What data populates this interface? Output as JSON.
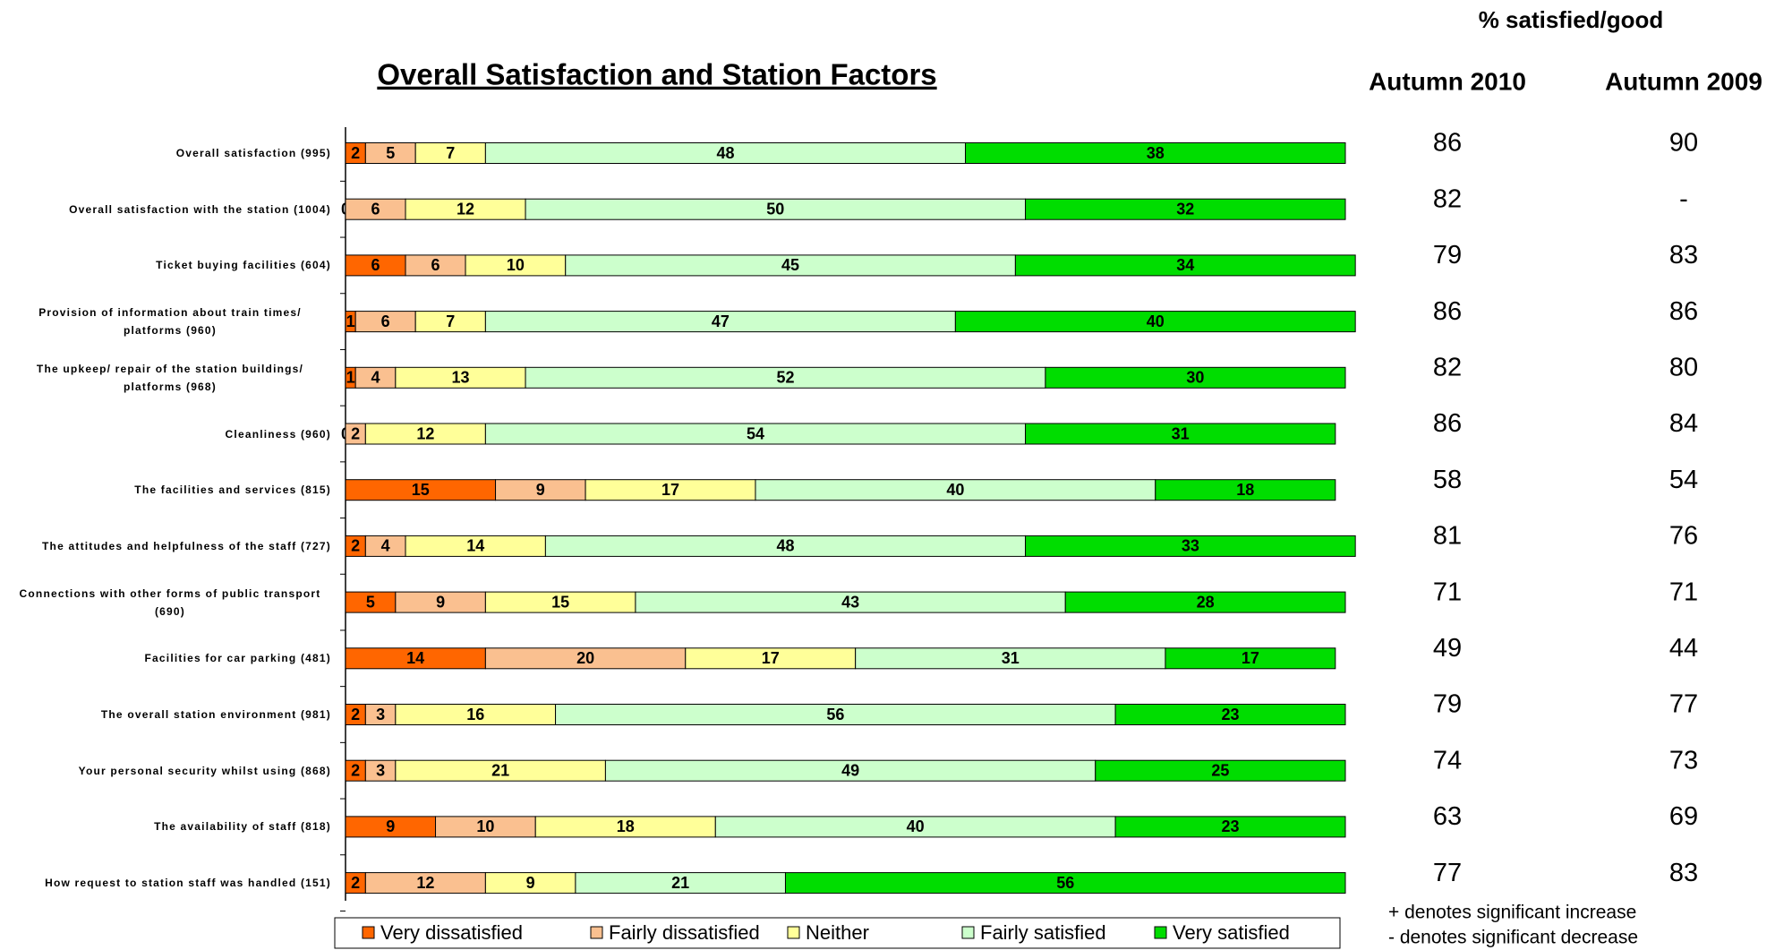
{
  "chart_data": {
    "type": "stacked-barh",
    "title": "Overall Satisfaction and Station Factors",
    "categories": [
      "Overall satisfaction (995)",
      "Overall satisfaction with the station (1004)",
      "Ticket buying facilities (604)",
      "Provision of information about train times/ platforms (960)",
      "The upkeep/ repair of the station buildings/ platforms (968)",
      "Cleanliness (960)",
      "The facilities and services (815)",
      "The attitudes and helpfulness of the staff (727)",
      "Connections with other forms of public transport (690)",
      "Facilities for car parking (481)",
      "The overall station environment (981)",
      "Your personal security whilst using (868)",
      "The availability of staff (818)",
      "How request to station staff was handled (151)"
    ],
    "series": [
      {
        "name": "Very dissatisfied",
        "color": "#ff6600",
        "values": [
          2,
          0,
          6,
          1,
          1,
          0,
          15,
          2,
          5,
          14,
          2,
          2,
          9,
          2
        ]
      },
      {
        "name": "Fairly dissatisfied",
        "color": "#fac090",
        "values": [
          5,
          6,
          6,
          6,
          4,
          2,
          9,
          4,
          9,
          20,
          3,
          3,
          10,
          12
        ]
      },
      {
        "name": "Neither",
        "color": "#ffff99",
        "values": [
          7,
          12,
          10,
          7,
          13,
          12,
          17,
          14,
          15,
          17,
          16,
          21,
          18,
          9
        ]
      },
      {
        "name": "Fairly satisfied",
        "color": "#ccffcc",
        "values": [
          48,
          50,
          45,
          47,
          52,
          54,
          40,
          48,
          43,
          31,
          56,
          49,
          40,
          21
        ]
      },
      {
        "name": "Very satisfied",
        "color": "#00dd00",
        "values": [
          38,
          32,
          34,
          40,
          30,
          31,
          18,
          33,
          28,
          17,
          23,
          25,
          23,
          56
        ]
      }
    ],
    "xlim": [
      0,
      100
    ],
    "legend": "bottom"
  },
  "table": {
    "title": "% satisfied/good",
    "columns": [
      "Autumn 2010",
      "Autumn 2009"
    ],
    "rows": [
      [
        86,
        90
      ],
      [
        82,
        "-"
      ],
      [
        79,
        83
      ],
      [
        86,
        86
      ],
      [
        82,
        80
      ],
      [
        86,
        84
      ],
      [
        58,
        54
      ],
      [
        81,
        76
      ],
      [
        71,
        71
      ],
      [
        49,
        44
      ],
      [
        79,
        77
      ],
      [
        74,
        73
      ],
      [
        63,
        69
      ],
      [
        77,
        83
      ]
    ]
  },
  "notes": [
    "+ denotes significant increase",
    "- denotes significant decrease"
  ]
}
